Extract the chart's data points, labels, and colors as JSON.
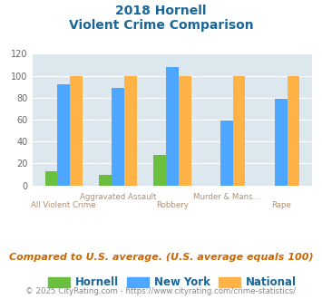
{
  "title_line1": "2018 Hornell",
  "title_line2": "Violent Crime Comparison",
  "categories": [
    "All Violent Crime",
    "Aggravated Assault",
    "Robbery",
    "Murder & Mans...",
    "Rape"
  ],
  "hornell": [
    13,
    10,
    28,
    0,
    0
  ],
  "newyork": [
    92,
    89,
    108,
    59,
    79
  ],
  "national": [
    100,
    100,
    100,
    100,
    100
  ],
  "hornell_color": "#6abf3e",
  "newyork_color": "#4da6ff",
  "national_color": "#ffb347",
  "ylim": [
    0,
    120
  ],
  "yticks": [
    0,
    20,
    40,
    60,
    80,
    100,
    120
  ],
  "background_color": "#dce8ee",
  "title_color": "#1a6699",
  "subtitle_note": "Compared to U.S. average. (U.S. average equals 100)",
  "footer": "© 2025 CityRating.com - https://www.cityrating.com/crime-statistics/",
  "legend_labels": [
    "Hornell",
    "New York",
    "National"
  ],
  "title_fontsize": 10,
  "axis_label_color": "#b09070",
  "legend_text_color": "#1a6699",
  "subtitle_color": "#cc6600",
  "footer_color": "#888888"
}
